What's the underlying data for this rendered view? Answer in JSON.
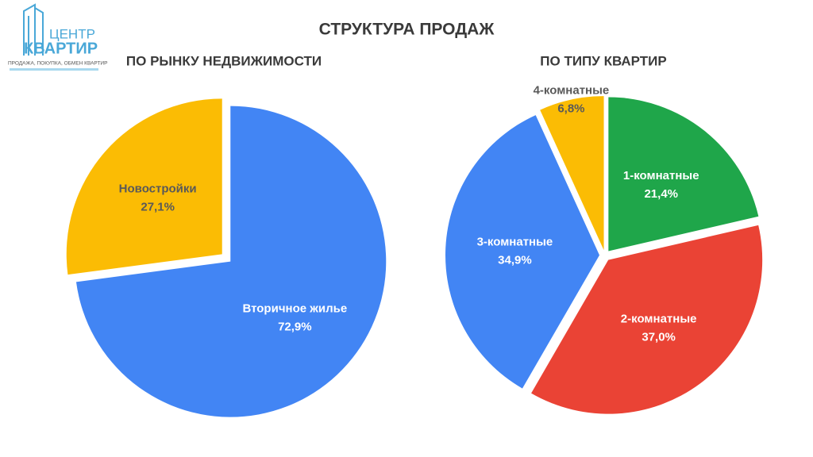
{
  "title": "СТРУКТУРА ПРОДАЖ",
  "logo": {
    "lines": [
      "ЦЕНТР",
      "КВАРТИР"
    ],
    "tagline": "ПРОДАЖА, ПОКУПКА, ОБМЕН КВАРТИР"
  },
  "chart_data": [
    {
      "type": "pie",
      "title": "ПО РЫНКУ НЕДВИЖИМОСТИ",
      "categories": [
        "Вторичное жилье",
        "Новостройки"
      ],
      "values": [
        72.9,
        27.1
      ],
      "value_labels": [
        "72,9%",
        "27,1%"
      ],
      "colors": [
        "#4285f4",
        "#fbbc04"
      ],
      "label_colors": [
        "#ffffff",
        "#595959"
      ]
    },
    {
      "type": "pie",
      "title": "ПО ТИПУ КВАРТИР",
      "categories": [
        "1-комнатные",
        "2-комнатные",
        "3-комнатные",
        "4-комнатные"
      ],
      "values": [
        21.4,
        37.0,
        34.9,
        6.8
      ],
      "value_labels": [
        "21,4%",
        "37,0%",
        "34,9%",
        "6,8%"
      ],
      "colors": [
        "#1fa64a",
        "#ea4335",
        "#4285f4",
        "#fbbc04"
      ],
      "label_colors": [
        "#ffffff",
        "#ffffff",
        "#ffffff",
        "#595959"
      ]
    }
  ]
}
